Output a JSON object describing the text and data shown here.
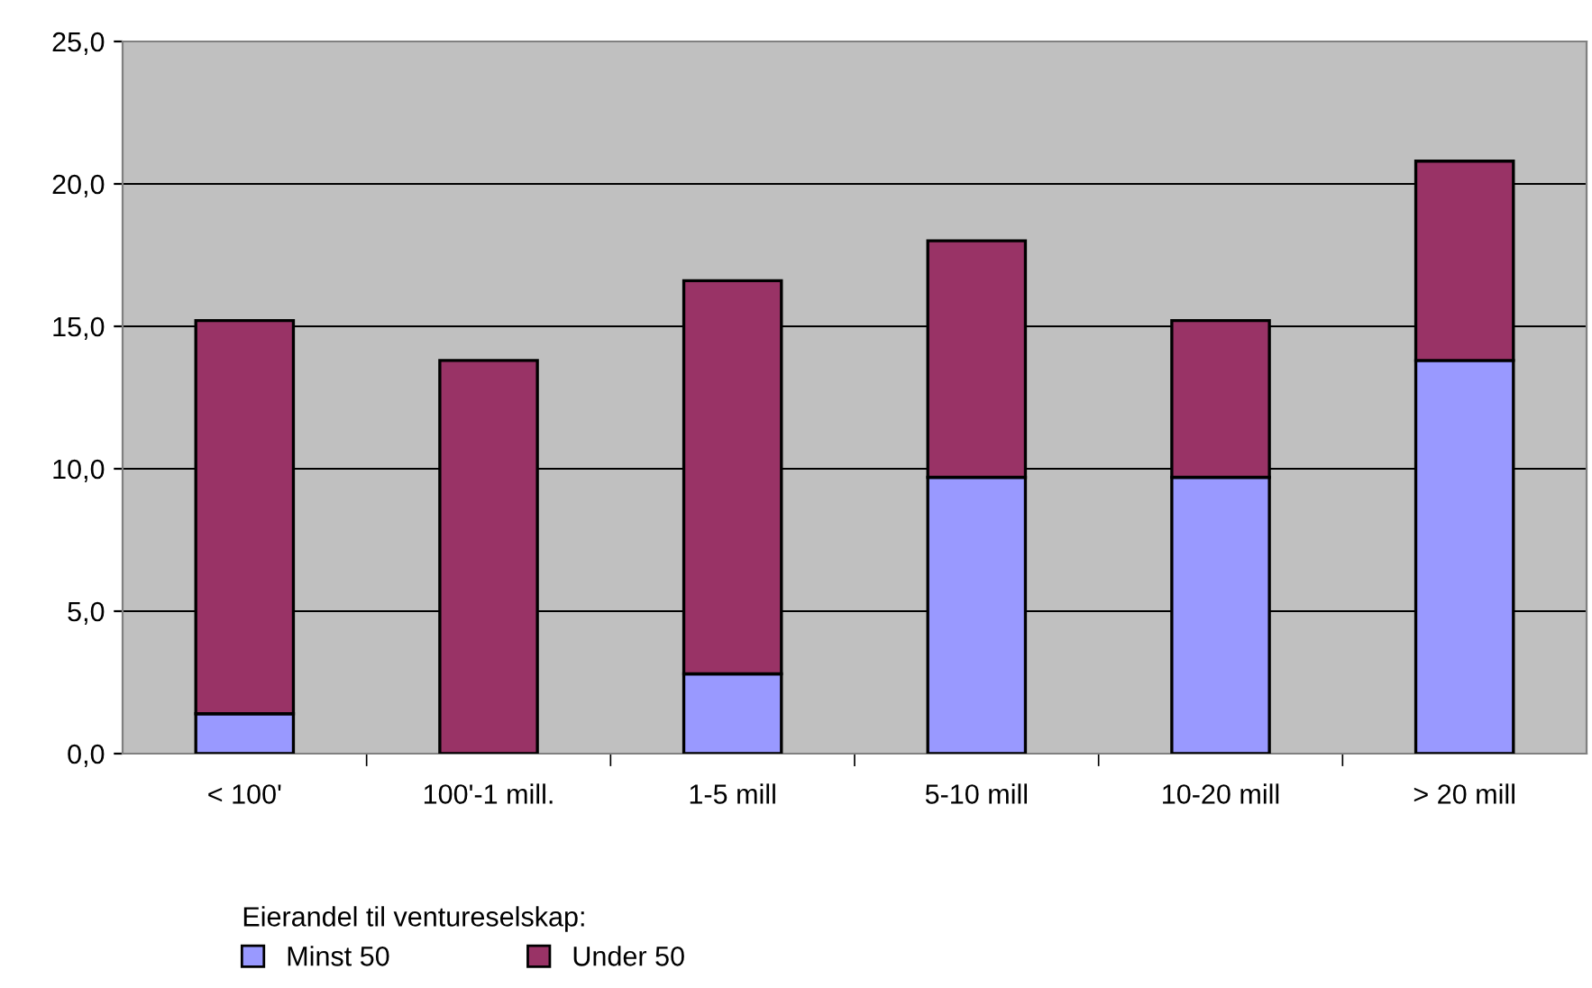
{
  "chart_data": {
    "type": "bar",
    "stacked": true,
    "categories": [
      "< 100'",
      "100'-1 mill.",
      "1-5 mill",
      "5-10 mill",
      "10-20 mill",
      "> 20 mill"
    ],
    "series": [
      {
        "name": "Minst 50",
        "color": "#9999ff",
        "values": [
          1.4,
          0,
          2.8,
          9.7,
          9.7,
          13.8
        ]
      },
      {
        "name": "Under 50",
        "color": "#993366",
        "values": [
          13.8,
          13.8,
          13.8,
          8.3,
          5.5,
          7.0
        ]
      }
    ],
    "legend_title": "Eierandel til ventureselskap:",
    "legend": "bottom left",
    "ylim": [
      0,
      25
    ],
    "yticks": [
      {
        "value": 0,
        "label": "0,0"
      },
      {
        "value": 5,
        "label": "5,0"
      },
      {
        "value": 10,
        "label": "10,0"
      },
      {
        "value": 15,
        "label": "15,0"
      },
      {
        "value": 20,
        "label": "20,0"
      },
      {
        "value": 25,
        "label": "25,0"
      }
    ],
    "grid": "y"
  }
}
